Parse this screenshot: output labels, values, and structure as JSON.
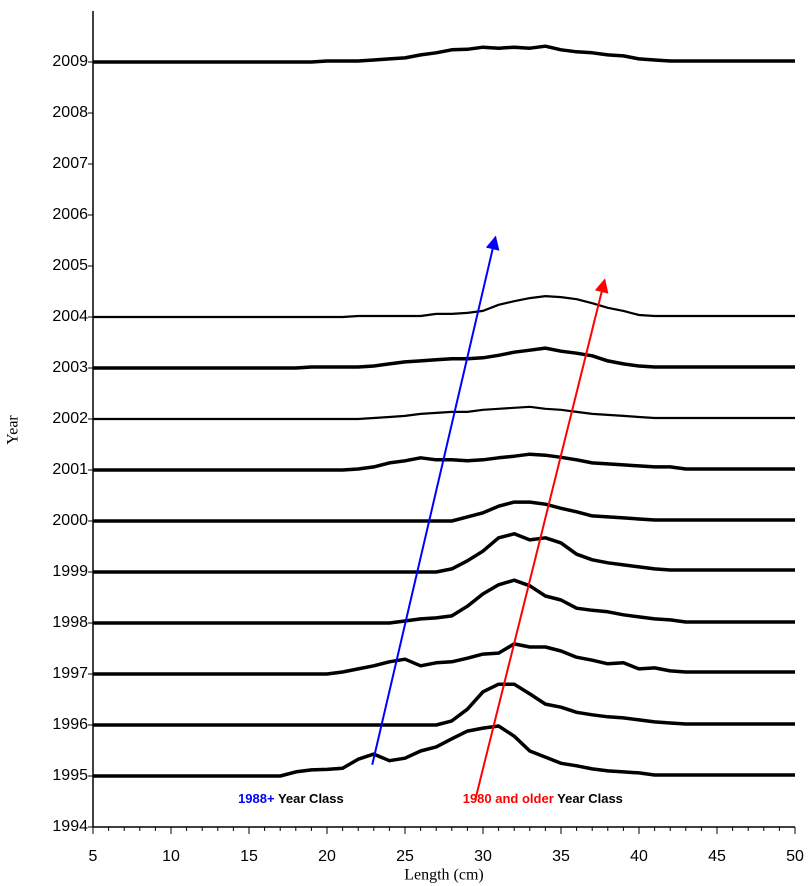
{
  "chart_data": {
    "type": "ridgeline",
    "x_label": "Length (cm)",
    "y_label": "Year",
    "xlim": [
      5,
      50
    ],
    "ylim": [
      1994,
      2010
    ],
    "xticks": [
      5,
      10,
      15,
      20,
      25,
      30,
      35,
      40,
      45,
      50
    ],
    "yticks": [
      1994,
      1995,
      1996,
      1997,
      1998,
      1999,
      2000,
      2001,
      2002,
      2003,
      2004,
      2005,
      2006,
      2007,
      2008,
      2009
    ],
    "x": [
      5,
      6,
      7,
      8,
      9,
      10,
      11,
      12,
      13,
      14,
      15,
      16,
      17,
      18,
      19,
      20,
      21,
      22,
      23,
      24,
      25,
      26,
      27,
      28,
      29,
      30,
      31,
      32,
      33,
      34,
      35,
      36,
      37,
      38,
      39,
      40,
      41,
      42,
      43,
      44,
      45,
      46,
      47,
      48,
      49,
      50
    ],
    "series": [
      {
        "color": "#000000",
        "line_width": 3.5,
        "values": [
          1995,
          1995,
          1995,
          1995,
          1995,
          1995,
          1995,
          1995,
          1995,
          1995,
          1995,
          1995,
          1995,
          1995.08,
          1995.12,
          1995.13,
          1995.15,
          1995.33,
          1995.43,
          1995.3,
          1995.35,
          1995.49,
          1995.57,
          1995.73,
          1995.88,
          1995.94,
          1995.98,
          1995.78,
          1995.49,
          1995.37,
          1995.25,
          1995.2,
          1995.14,
          1995.1,
          1995.08,
          1995.06,
          1995.02,
          1995.02,
          1995.02,
          1995.02,
          1995.02,
          1995.02,
          1995.02,
          1995.02,
          1995.02,
          1995.02
        ]
      },
      {
        "color": "#000000",
        "line_width": 3.5,
        "values": [
          1996,
          1996,
          1996,
          1996,
          1996,
          1996,
          1996,
          1996,
          1996,
          1996,
          1996,
          1996,
          1996,
          1996,
          1996,
          1996,
          1996,
          1996,
          1996,
          1996,
          1996,
          1996,
          1996,
          1996.08,
          1996.31,
          1996.65,
          1996.8,
          1996.8,
          1996.61,
          1996.41,
          1996.35,
          1996.25,
          1996.2,
          1996.16,
          1996.14,
          1996.1,
          1996.06,
          1996.04,
          1996.02,
          1996.02,
          1996.02,
          1996.02,
          1996.02,
          1996.02,
          1996.02,
          1996.02
        ]
      },
      {
        "color": "#000000",
        "line_width": 3.5,
        "values": [
          1997,
          1997,
          1997,
          1997,
          1997,
          1997,
          1997,
          1997,
          1997,
          1997,
          1997,
          1997,
          1997,
          1997,
          1997,
          1997,
          1997.04,
          1997.1,
          1997.16,
          1997.24,
          1997.29,
          1997.16,
          1997.22,
          1997.24,
          1997.31,
          1997.39,
          1997.41,
          1997.59,
          1997.53,
          1997.53,
          1997.45,
          1997.33,
          1997.27,
          1997.2,
          1997.22,
          1997.1,
          1997.12,
          1997.06,
          1997.04,
          1997.04,
          1997.04,
          1997.04,
          1997.04,
          1997.04,
          1997.04,
          1997.04
        ]
      },
      {
        "color": "#000000",
        "line_width": 3.5,
        "values": [
          1998,
          1998,
          1998,
          1998,
          1998,
          1998,
          1998,
          1998,
          1998,
          1998,
          1998,
          1998,
          1998,
          1998,
          1998,
          1998,
          1998,
          1998,
          1998,
          1998,
          1998.04,
          1998.08,
          1998.1,
          1998.14,
          1998.33,
          1998.57,
          1998.75,
          1998.84,
          1998.73,
          1998.53,
          1998.45,
          1998.29,
          1998.25,
          1998.22,
          1998.16,
          1998.12,
          1998.08,
          1998.06,
          1998.02,
          1998.02,
          1998.02,
          1998.02,
          1998.02,
          1998.02,
          1998.02,
          1998.02
        ]
      },
      {
        "color": "#000000",
        "line_width": 3.5,
        "values": [
          1999,
          1999,
          1999,
          1999,
          1999,
          1999,
          1999,
          1999,
          1999,
          1999,
          1999,
          1999,
          1999,
          1999,
          1999,
          1999,
          1999,
          1999,
          1999,
          1999,
          1999,
          1999,
          1999,
          1999.06,
          1999.22,
          1999.41,
          1999.67,
          1999.75,
          1999.63,
          1999.67,
          1999.57,
          1999.35,
          1999.24,
          1999.18,
          1999.14,
          1999.1,
          1999.06,
          1999.04,
          1999.04,
          1999.04,
          1999.04,
          1999.04,
          1999.04,
          1999.04,
          1999.04,
          1999.04
        ]
      },
      {
        "color": "#000000",
        "line_width": 3.5,
        "values": [
          2000,
          2000,
          2000,
          2000,
          2000,
          2000,
          2000,
          2000,
          2000,
          2000,
          2000,
          2000,
          2000,
          2000,
          2000,
          2000,
          2000,
          2000,
          2000,
          2000,
          2000,
          2000,
          2000,
          2000,
          2000.08,
          2000.16,
          2000.29,
          2000.37,
          2000.37,
          2000.33,
          2000.25,
          2000.18,
          2000.1,
          2000.08,
          2000.06,
          2000.04,
          2000.02,
          2000.02,
          2000.02,
          2000.02,
          2000.02,
          2000.02,
          2000.02,
          2000.02,
          2000.02,
          2000.02
        ]
      },
      {
        "color": "#000000",
        "line_width": 3.5,
        "values": [
          2001,
          2001,
          2001,
          2001,
          2001,
          2001,
          2001,
          2001,
          2001,
          2001,
          2001,
          2001,
          2001,
          2001,
          2001,
          2001,
          2001,
          2001.02,
          2001.06,
          2001.14,
          2001.18,
          2001.24,
          2001.2,
          2001.2,
          2001.18,
          2001.2,
          2001.24,
          2001.27,
          2001.31,
          2001.29,
          2001.25,
          2001.2,
          2001.14,
          2001.12,
          2001.1,
          2001.08,
          2001.06,
          2001.06,
          2001.02,
          2001.02,
          2001.02,
          2001.02,
          2001.02,
          2001.02,
          2001.02,
          2001.02
        ]
      },
      {
        "color": "#000000",
        "line_width": 2.2,
        "values": [
          2002,
          2002,
          2002,
          2002,
          2002,
          2002,
          2002,
          2002,
          2002,
          2002,
          2002,
          2002,
          2002,
          2002,
          2002,
          2002,
          2002,
          2002,
          2002.02,
          2002.04,
          2002.06,
          2002.1,
          2002.12,
          2002.14,
          2002.14,
          2002.18,
          2002.2,
          2002.22,
          2002.24,
          2002.2,
          2002.18,
          2002.14,
          2002.1,
          2002.08,
          2002.06,
          2002.04,
          2002.02,
          2002.02,
          2002.02,
          2002.02,
          2002.02,
          2002.02,
          2002.02,
          2002.02,
          2002.02,
          2002.02
        ]
      },
      {
        "color": "#000000",
        "line_width": 3.5,
        "values": [
          2003,
          2003,
          2003,
          2003,
          2003,
          2003,
          2003,
          2003,
          2003,
          2003,
          2003,
          2003,
          2003,
          2003,
          2003.02,
          2003.02,
          2003.02,
          2003.02,
          2003.04,
          2003.08,
          2003.12,
          2003.14,
          2003.16,
          2003.18,
          2003.18,
          2003.2,
          2003.25,
          2003.31,
          2003.35,
          2003.39,
          2003.33,
          2003.29,
          2003.24,
          2003.14,
          2003.08,
          2003.04,
          2003.02,
          2003.02,
          2003.02,
          2003.02,
          2003.02,
          2003.02,
          2003.02,
          2003.02,
          2003.02,
          2003.02
        ]
      },
      {
        "color": "#000000",
        "line_width": 2.2,
        "values": [
          2004,
          2004,
          2004,
          2004,
          2004,
          2004,
          2004,
          2004,
          2004,
          2004,
          2004,
          2004,
          2004,
          2004,
          2004,
          2004,
          2004,
          2004.02,
          2004.02,
          2004.02,
          2004.02,
          2004.02,
          2004.06,
          2004.06,
          2004.08,
          2004.12,
          2004.24,
          2004.31,
          2004.37,
          2004.41,
          2004.39,
          2004.35,
          2004.27,
          2004.18,
          2004.12,
          2004.04,
          2004.02,
          2004.02,
          2004.02,
          2004.02,
          2004.02,
          2004.02,
          2004.02,
          2004.02,
          2004.02,
          2004.02
        ]
      },
      {
        "color": "#000000",
        "line_width": 3.5,
        "values": [
          2009,
          2009,
          2009,
          2009,
          2009,
          2009,
          2009,
          2009,
          2009,
          2009,
          2009,
          2009,
          2009,
          2009,
          2009,
          2009.02,
          2009.02,
          2009.02,
          2009.04,
          2009.06,
          2009.08,
          2009.14,
          2009.18,
          2009.24,
          2009.25,
          2009.29,
          2009.27,
          2009.29,
          2009.27,
          2009.31,
          2009.24,
          2009.2,
          2009.18,
          2009.14,
          2009.12,
          2009.06,
          2009.04,
          2009.02,
          2009.02,
          2009.02,
          2009.02,
          2009.02,
          2009.02,
          2009.02,
          2009.02,
          2009.02
        ]
      }
    ],
    "annotations": [
      {
        "parts": [
          {
            "text": "1988+",
            "color": "#0000ff"
          },
          {
            "text": " Year Class",
            "color": "#000000"
          }
        ],
        "x": 14.3,
        "y": 1994.53,
        "arrow": {
          "color": "#0000ff",
          "x": [
            22.9,
            30.8
          ],
          "y": [
            1995.22,
            2005.57
          ]
        }
      },
      {
        "parts": [
          {
            "text": "1980 and older",
            "color": "#ff0000"
          },
          {
            "text": " Year Class",
            "color": "#000000"
          }
        ],
        "x": 28.7,
        "y": 1994.53,
        "arrow": {
          "color": "#ff0000",
          "x": [
            29.5,
            37.8
          ],
          "y": [
            1994.53,
            2004.73
          ]
        }
      }
    ]
  }
}
